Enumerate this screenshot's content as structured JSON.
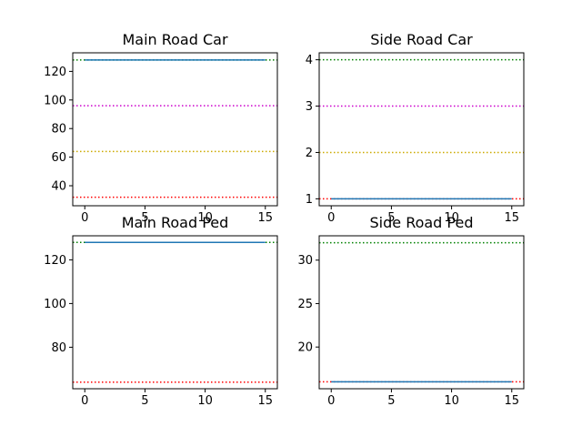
{
  "figure": {
    "background": "#ffffff"
  },
  "chart_data": [
    {
      "type": "line",
      "title": "Main Road Car",
      "xlabel": "",
      "ylabel": "",
      "xlim": [
        -1,
        16
      ],
      "ylim": [
        26,
        133
      ],
      "xticks": [
        0,
        5,
        10,
        15
      ],
      "yticks": [
        40,
        60,
        80,
        100,
        120
      ],
      "grid": false,
      "series": [
        {
          "color": "#ff0000",
          "style": "dotted",
          "x": [
            -1,
            16
          ],
          "y": [
            32,
            32
          ]
        },
        {
          "color": "#ccaa00",
          "style": "dotted",
          "x": [
            -1,
            16
          ],
          "y": [
            64,
            64
          ]
        },
        {
          "color": "#cc00cc",
          "style": "dotted",
          "x": [
            -1,
            16
          ],
          "y": [
            96,
            96
          ]
        },
        {
          "color": "#008000",
          "style": "dotted",
          "x": [
            -1,
            16
          ],
          "y": [
            128,
            128
          ]
        },
        {
          "color": "#1f77b4",
          "style": "solid",
          "x": [
            0,
            15
          ],
          "y": [
            128,
            128
          ]
        }
      ]
    },
    {
      "type": "line",
      "title": "Side Road Car",
      "xlabel": "",
      "ylabel": "",
      "xlim": [
        -1,
        16
      ],
      "ylim": [
        0.85,
        4.15
      ],
      "xticks": [
        0,
        5,
        10,
        15
      ],
      "yticks": [
        1,
        2,
        3,
        4
      ],
      "grid": false,
      "series": [
        {
          "color": "#ff0000",
          "style": "dotted",
          "x": [
            -1,
            16
          ],
          "y": [
            1,
            1
          ]
        },
        {
          "color": "#ccaa00",
          "style": "dotted",
          "x": [
            -1,
            16
          ],
          "y": [
            2,
            2
          ]
        },
        {
          "color": "#cc00cc",
          "style": "dotted",
          "x": [
            -1,
            16
          ],
          "y": [
            3,
            3
          ]
        },
        {
          "color": "#008000",
          "style": "dotted",
          "x": [
            -1,
            16
          ],
          "y": [
            4,
            4
          ]
        },
        {
          "color": "#1f77b4",
          "style": "solid",
          "x": [
            0,
            15
          ],
          "y": [
            1,
            1
          ]
        }
      ]
    },
    {
      "type": "line",
      "title": "Main Road Ped",
      "xlabel": "",
      "ylabel": "",
      "xlim": [
        -1,
        16
      ],
      "ylim": [
        61,
        131
      ],
      "xticks": [
        0,
        5,
        10,
        15
      ],
      "yticks": [
        80,
        100,
        120
      ],
      "grid": false,
      "series": [
        {
          "color": "#ff0000",
          "style": "dotted",
          "x": [
            -1,
            16
          ],
          "y": [
            64,
            64
          ]
        },
        {
          "color": "#008000",
          "style": "dotted",
          "x": [
            -1,
            16
          ],
          "y": [
            128,
            128
          ]
        },
        {
          "color": "#1f77b4",
          "style": "solid",
          "x": [
            0,
            15
          ],
          "y": [
            128,
            128
          ]
        }
      ]
    },
    {
      "type": "line",
      "title": "Side Road Ped",
      "xlabel": "",
      "ylabel": "",
      "xlim": [
        -1,
        16
      ],
      "ylim": [
        15.2,
        32.8
      ],
      "xticks": [
        0,
        5,
        10,
        15
      ],
      "yticks": [
        20,
        25,
        30
      ],
      "grid": false,
      "series": [
        {
          "color": "#ff0000",
          "style": "dotted",
          "x": [
            -1,
            16
          ],
          "y": [
            16,
            16
          ]
        },
        {
          "color": "#008000",
          "style": "dotted",
          "x": [
            -1,
            16
          ],
          "y": [
            32,
            32
          ]
        },
        {
          "color": "#1f77b4",
          "style": "solid",
          "x": [
            0,
            15
          ],
          "y": [
            16,
            16
          ]
        }
      ]
    }
  ]
}
